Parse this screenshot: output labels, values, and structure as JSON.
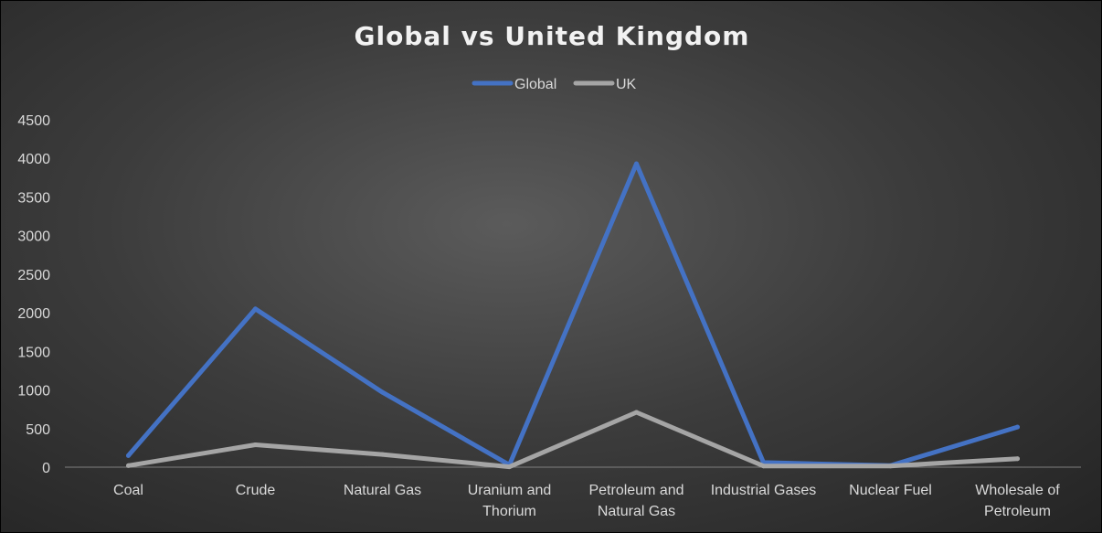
{
  "chart_data": {
    "type": "line",
    "title": "Global vs United Kingdom",
    "xlabel": "",
    "ylabel": "",
    "categories": [
      "Coal",
      "Crude",
      "Natural Gas",
      "Uranium and Thorium",
      "Petroleum and Natural Gas",
      "Industrial Gases",
      "Nuclear Fuel",
      "Wholesale of Petroleum"
    ],
    "category_lines": [
      [
        "Coal"
      ],
      [
        "Crude"
      ],
      [
        "Natural Gas"
      ],
      [
        "Uranium and",
        "Thorium"
      ],
      [
        "Petroleum and",
        "Natural Gas"
      ],
      [
        "Industrial Gases"
      ],
      [
        "Nuclear Fuel"
      ],
      [
        "Wholesale of",
        "Petroleum"
      ]
    ],
    "series": [
      {
        "name": "Global",
        "color": "#4472c4",
        "values": [
          150,
          2050,
          970,
          30,
          3930,
          60,
          20,
          520
        ]
      },
      {
        "name": "UK",
        "color": "#a5a5a5",
        "values": [
          20,
          290,
          165,
          5,
          710,
          15,
          15,
          110
        ]
      }
    ],
    "ylim": [
      0,
      4500
    ],
    "yticks": [
      0,
      500,
      1000,
      1500,
      2000,
      2500,
      3000,
      3500,
      4000,
      4500
    ],
    "grid": false,
    "legend_position": "top-center"
  }
}
